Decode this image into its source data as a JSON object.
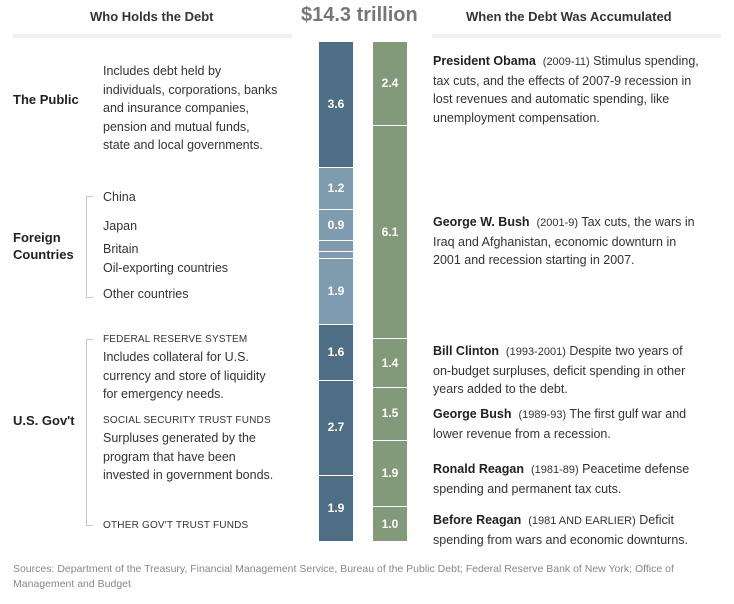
{
  "header": {
    "left_title": "Who Holds the Debt",
    "total": "$14.3 trillion",
    "right_title": "When the Debt Was Accumulated"
  },
  "holders": {
    "public": {
      "name": "The Public",
      "desc": [
        "Includes debt held by",
        "individuals, corporations, banks",
        "and insurance companies,",
        "pension and mutual funds,",
        "state and local governments."
      ]
    },
    "foreign": {
      "name": [
        "Foreign",
        "Countries"
      ],
      "items": [
        "China",
        "Japan",
        "Britain",
        "Oil-exporting countries",
        "Other countries"
      ]
    },
    "govt": {
      "name": "U.S. Gov't",
      "fed_title": "FEDERAL RESERVE SYSTEM",
      "fed_desc": [
        "Includes collateral for U.S.",
        "currency and store of liquidity",
        "for emergency needs."
      ],
      "ss_title": "SOCIAL SECURITY TRUST FUNDS",
      "ss_desc": [
        "Surpluses generated by the",
        "program that have been",
        "invested in government bonds."
      ],
      "other_title": "OTHER GOV'T TRUST FUNDS"
    }
  },
  "eras": [
    {
      "name": "President Obama",
      "years": "(2009-11)",
      "lines": [
        " Stimulus spending,",
        "tax cuts, and the effects of 2007-9 recession in",
        "lost revenues and automatic spending, like",
        "unemployment compensation."
      ]
    },
    {
      "name": "George W. Bush",
      "years": "(2001-9)",
      "lines": [
        " Tax cuts, the wars in",
        "Iraq and Afghanistan, economic downturn in",
        "2001 and recession starting in 2007."
      ]
    },
    {
      "name": "Bill Clinton",
      "years": "(1993-2001)",
      "lines": [
        " Despite two years of",
        "on-budget surpluses, deficit spending in other",
        "years added to the debt."
      ]
    },
    {
      "name": "George Bush",
      "years": "(1989-93)",
      "lines": [
        " The first gulf war and",
        "lower revenue from a recession."
      ]
    },
    {
      "name": "Ronald Reagan",
      "years": "(1981-89)",
      "lines": [
        " Peacetime defense",
        "spending and permanent tax cuts."
      ]
    },
    {
      "name": "Before Reagan",
      "years": "(1981 AND EARLIER)",
      "lines": [
        " Deficit",
        "spending from wars and economic downturns."
      ]
    }
  ],
  "chart_data": {
    "type": "bar",
    "title": "$14.3 trillion",
    "stacked": true,
    "colors": {
      "public": "#4d6e85",
      "foreign": "#7f9bb0",
      "govt": "#4d6e85",
      "eras": "#82997a"
    },
    "holders_bar": [
      {
        "segment": "The Public",
        "value": 3.6,
        "label": "3.6",
        "group": "public"
      },
      {
        "segment": "China",
        "value": 1.2,
        "label": "1.2",
        "group": "foreign"
      },
      {
        "segment": "Japan",
        "value": 0.9,
        "label": "0.9",
        "group": "foreign"
      },
      {
        "segment": "Britain",
        "value": 0.3,
        "label": "",
        "group": "foreign"
      },
      {
        "segment": "Oil-exporting countries",
        "value": 0.2,
        "label": "",
        "group": "foreign"
      },
      {
        "segment": "Other countries",
        "value": 1.9,
        "label": "1.9",
        "group": "foreign"
      },
      {
        "segment": "Federal Reserve System",
        "value": 1.6,
        "label": "1.6",
        "group": "govt"
      },
      {
        "segment": "Social Security Trust Funds",
        "value": 2.7,
        "label": "2.7",
        "group": "govt"
      },
      {
        "segment": "Other Gov't Trust Funds",
        "value": 1.9,
        "label": "1.9",
        "group": "govt"
      }
    ],
    "eras_bar": [
      {
        "segment": "President Obama",
        "value": 2.4,
        "label": "2.4"
      },
      {
        "segment": "George W. Bush",
        "value": 6.1,
        "label": "6.1"
      },
      {
        "segment": "Bill Clinton",
        "value": 1.4,
        "label": "1.4"
      },
      {
        "segment": "George Bush",
        "value": 1.5,
        "label": "1.5"
      },
      {
        "segment": "Ronald Reagan",
        "value": 1.9,
        "label": "1.9"
      },
      {
        "segment": "Before Reagan",
        "value": 1.0,
        "label": "1.0"
      }
    ]
  },
  "sources": [
    "Sources: Department of the Treasury, Financial Management Service, Bureau of the Public Debt; Federal Reserve Bank of New York; Office of",
    "Management and Budget"
  ]
}
